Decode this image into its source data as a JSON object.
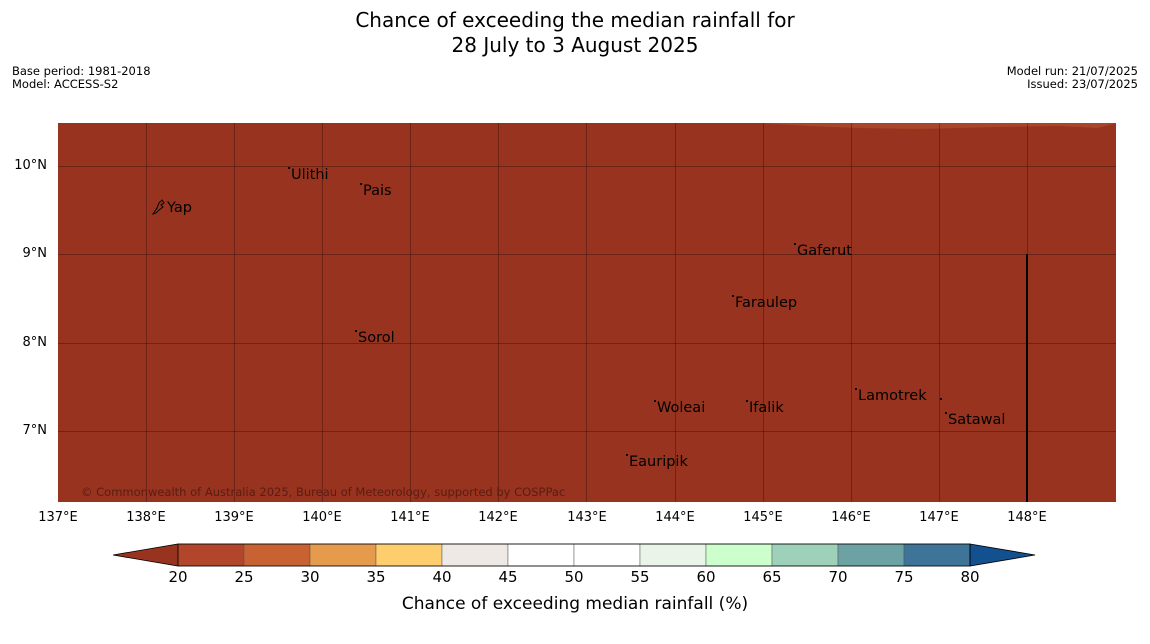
{
  "title": {
    "line1": "Chance of exceeding the median rainfall for",
    "line2": "28 July to 3 August 2025"
  },
  "meta": {
    "base_period": "Base period: 1981-2018",
    "model": "Model: ACCESS-S2",
    "model_run": "Model run: 21/07/2025",
    "issued": "Issued: 23/07/2025"
  },
  "map": {
    "fill_color": "#97331f",
    "copyright": "© Commonwealth of Australia 2025, Bureau of Meteorology, supported by COSPPac",
    "places": [
      {
        "name": "Yap"
      },
      {
        "name": "Ulithi"
      },
      {
        "name": "Pais"
      },
      {
        "name": "Gaferut"
      },
      {
        "name": "Faraulep"
      },
      {
        "name": "Sorol"
      },
      {
        "name": "Lamotrek"
      },
      {
        "name": "Woleai"
      },
      {
        "name": "Ifalik"
      },
      {
        "name": "Satawal"
      },
      {
        "name": "Eauripik"
      }
    ],
    "lat_labels": [
      "10°N",
      "9°N",
      "8°N",
      "7°N"
    ],
    "lon_labels": [
      "137°E",
      "138°E",
      "139°E",
      "140°E",
      "141°E",
      "142°E",
      "143°E",
      "144°E",
      "145°E",
      "146°E",
      "147°E",
      "148°E"
    ]
  },
  "colorbar": {
    "title": "Chance of exceeding median rainfall (%)",
    "ticks": [
      "20",
      "25",
      "30",
      "35",
      "40",
      "45",
      "50",
      "55",
      "60",
      "65",
      "70",
      "75",
      "80"
    ],
    "colors": [
      "#97331f",
      "#b2462a",
      "#c96232",
      "#e59a4c",
      "#fecd6d",
      "#eee9e4",
      "#ffffff",
      "#ffffff",
      "#eaf5ea",
      "#ccffcc",
      "#9ed1ba",
      "#6da2a5",
      "#3f7499",
      "#13508f"
    ]
  }
}
